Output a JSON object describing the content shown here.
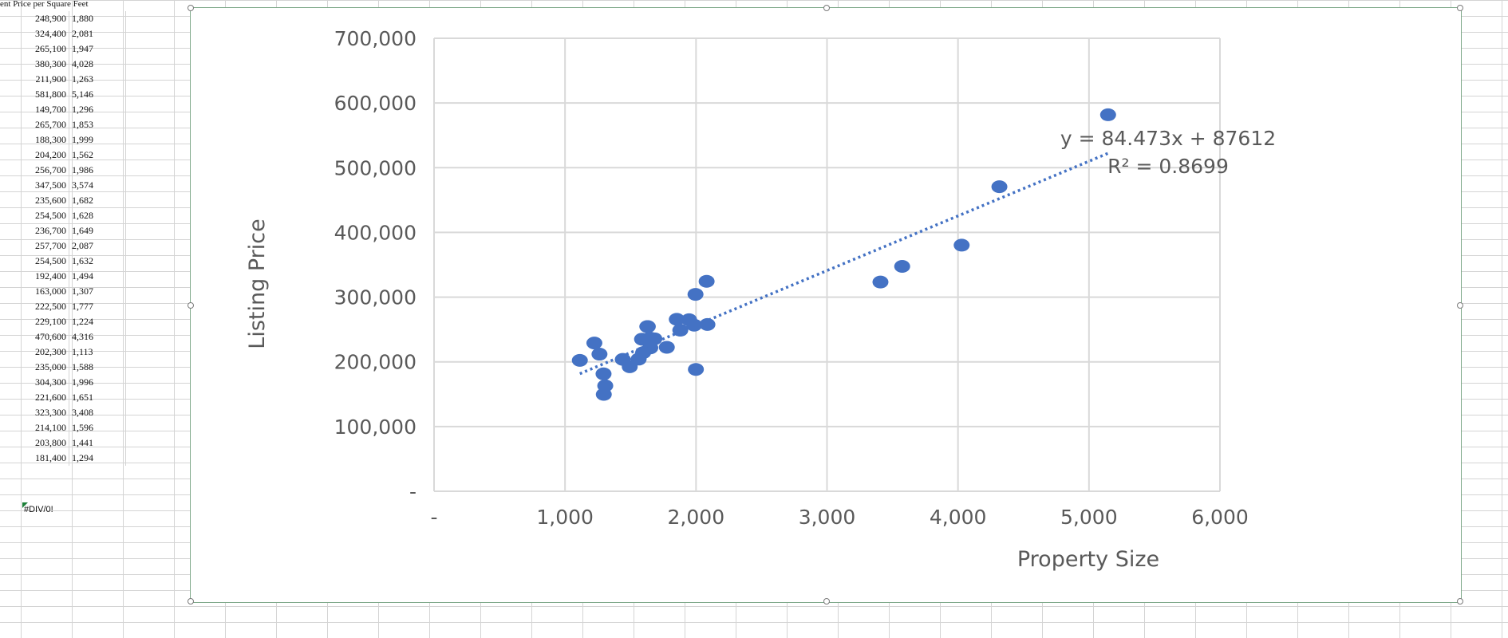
{
  "spreadsheet": {
    "header_text": "ent Price per Square Feet",
    "rows": [
      {
        "price": "248,900",
        "ppsf": "1,880"
      },
      {
        "price": "324,400",
        "ppsf": "2,081"
      },
      {
        "price": "265,100",
        "ppsf": "1,947"
      },
      {
        "price": "380,300",
        "ppsf": "4,028"
      },
      {
        "price": "211,900",
        "ppsf": "1,263"
      },
      {
        "price": "581,800",
        "ppsf": "5,146"
      },
      {
        "price": "149,700",
        "ppsf": "1,296"
      },
      {
        "price": "265,700",
        "ppsf": "1,853"
      },
      {
        "price": "188,300",
        "ppsf": "1,999"
      },
      {
        "price": "204,200",
        "ppsf": "1,562"
      },
      {
        "price": "256,700",
        "ppsf": "1,986"
      },
      {
        "price": "347,500",
        "ppsf": "3,574"
      },
      {
        "price": "235,600",
        "ppsf": "1,682"
      },
      {
        "price": "254,500",
        "ppsf": "1,628"
      },
      {
        "price": "236,700",
        "ppsf": "1,649"
      },
      {
        "price": "257,700",
        "ppsf": "2,087"
      },
      {
        "price": "254,500",
        "ppsf": "1,632"
      },
      {
        "price": "192,400",
        "ppsf": "1,494"
      },
      {
        "price": "163,000",
        "ppsf": "1,307"
      },
      {
        "price": "222,500",
        "ppsf": "1,777"
      },
      {
        "price": "229,100",
        "ppsf": "1,224"
      },
      {
        "price": "470,600",
        "ppsf": "4,316"
      },
      {
        "price": "202,300",
        "ppsf": "1,113"
      },
      {
        "price": "235,000",
        "ppsf": "1,588"
      },
      {
        "price": "304,300",
        "ppsf": "1,996"
      },
      {
        "price": "221,600",
        "ppsf": "1,651"
      },
      {
        "price": "323,300",
        "ppsf": "3,408"
      },
      {
        "price": "214,100",
        "ppsf": "1,596"
      },
      {
        "price": "203,800",
        "ppsf": "1,441"
      },
      {
        "price": "181,400",
        "ppsf": "1,294"
      }
    ],
    "error_cell": "#DIV/0!",
    "error_flag_color": "#1a7f37"
  },
  "chart_data": {
    "type": "scatter",
    "title": "",
    "xlabel": "Property Size",
    "ylabel": "Listing Price",
    "xlim": [
      0,
      6000
    ],
    "ylim": [
      0,
      700000
    ],
    "x_ticks": [
      0,
      1000,
      2000,
      3000,
      4000,
      5000,
      6000
    ],
    "x_tick_labels": [
      "-",
      "1,000",
      "2,000",
      "3,000",
      "4,000",
      "5,000",
      "6,000"
    ],
    "y_ticks": [
      0,
      100000,
      200000,
      300000,
      400000,
      500000,
      600000,
      700000
    ],
    "y_tick_labels": [
      "-",
      "100,000",
      "200,000",
      "300,000",
      "400,000",
      "500,000",
      "600,000",
      "700,000"
    ],
    "grid": true,
    "legend": "none",
    "marker_color": "#4472c4",
    "series": [
      {
        "points": [
          [
            1880,
            248900
          ],
          [
            2081,
            324400
          ],
          [
            1947,
            265100
          ],
          [
            4028,
            380300
          ],
          [
            1263,
            211900
          ],
          [
            5146,
            581800
          ],
          [
            1296,
            149700
          ],
          [
            1853,
            265700
          ],
          [
            1999,
            188300
          ],
          [
            1562,
            204200
          ],
          [
            1986,
            256700
          ],
          [
            3574,
            347500
          ],
          [
            1682,
            235600
          ],
          [
            1628,
            254500
          ],
          [
            1649,
            236700
          ],
          [
            2087,
            257700
          ],
          [
            1632,
            254500
          ],
          [
            1494,
            192400
          ],
          [
            1307,
            163000
          ],
          [
            1777,
            222500
          ],
          [
            1224,
            229100
          ],
          [
            4316,
            470600
          ],
          [
            1113,
            202300
          ],
          [
            1588,
            235000
          ],
          [
            1996,
            304300
          ],
          [
            1651,
            221600
          ],
          [
            3408,
            323300
          ],
          [
            1596,
            214100
          ],
          [
            1441,
            203800
          ],
          [
            1294,
            181400
          ]
        ]
      }
    ],
    "trendline": {
      "slope": 84.473,
      "intercept": 87612,
      "x_range": [
        1113,
        5146
      ],
      "style": "dotted",
      "color": "#4472c4",
      "equation_label": "y = 84.473x + 87612",
      "r2_label": "R² = 0.8699"
    }
  }
}
